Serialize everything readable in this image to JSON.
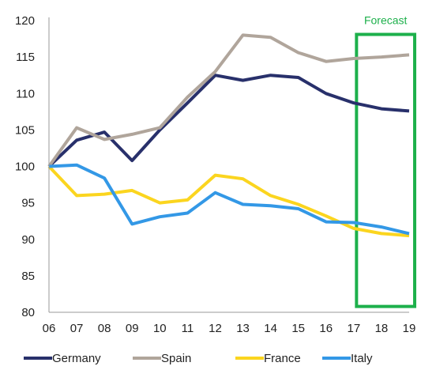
{
  "chart_data": {
    "type": "line",
    "x": [
      "06",
      "07",
      "08",
      "09",
      "10",
      "11",
      "12",
      "13",
      "14",
      "15",
      "16",
      "17",
      "18",
      "19"
    ],
    "ylim": [
      80,
      120
    ],
    "yticks": [
      80,
      85,
      90,
      95,
      100,
      105,
      110,
      115,
      120
    ],
    "grid": false,
    "legend_position": "bottom",
    "series": [
      {
        "name": "Germany",
        "color": "#28306b",
        "values": [
          100,
          103.6,
          104.7,
          100.8,
          105,
          108.7,
          112.5,
          111.8,
          112.5,
          112.2,
          110,
          108.7,
          107.9,
          107.6
        ]
      },
      {
        "name": "Spain",
        "color": "#b0a59b",
        "values": [
          100,
          105.3,
          103.7,
          104.4,
          105.3,
          109.5,
          113,
          118,
          117.7,
          115.6,
          114.4,
          114.8,
          115,
          115.3
        ]
      },
      {
        "name": "France",
        "color": "#fbd51f",
        "values": [
          100,
          96,
          96.2,
          96.7,
          95,
          95.4,
          98.8,
          98.3,
          96,
          94.8,
          93.2,
          91.5,
          90.8,
          90.5
        ]
      },
      {
        "name": "Italy",
        "color": "#3398e6",
        "values": [
          100,
          100.2,
          98.4,
          92.1,
          93.1,
          93.6,
          96.4,
          94.8,
          94.6,
          94.2,
          92.4,
          92.3,
          91.7,
          90.8
        ]
      }
    ],
    "annotations": [
      {
        "label": "Forecast",
        "color": "#1db04b",
        "x_from": "18",
        "x_to": "19"
      }
    ]
  }
}
